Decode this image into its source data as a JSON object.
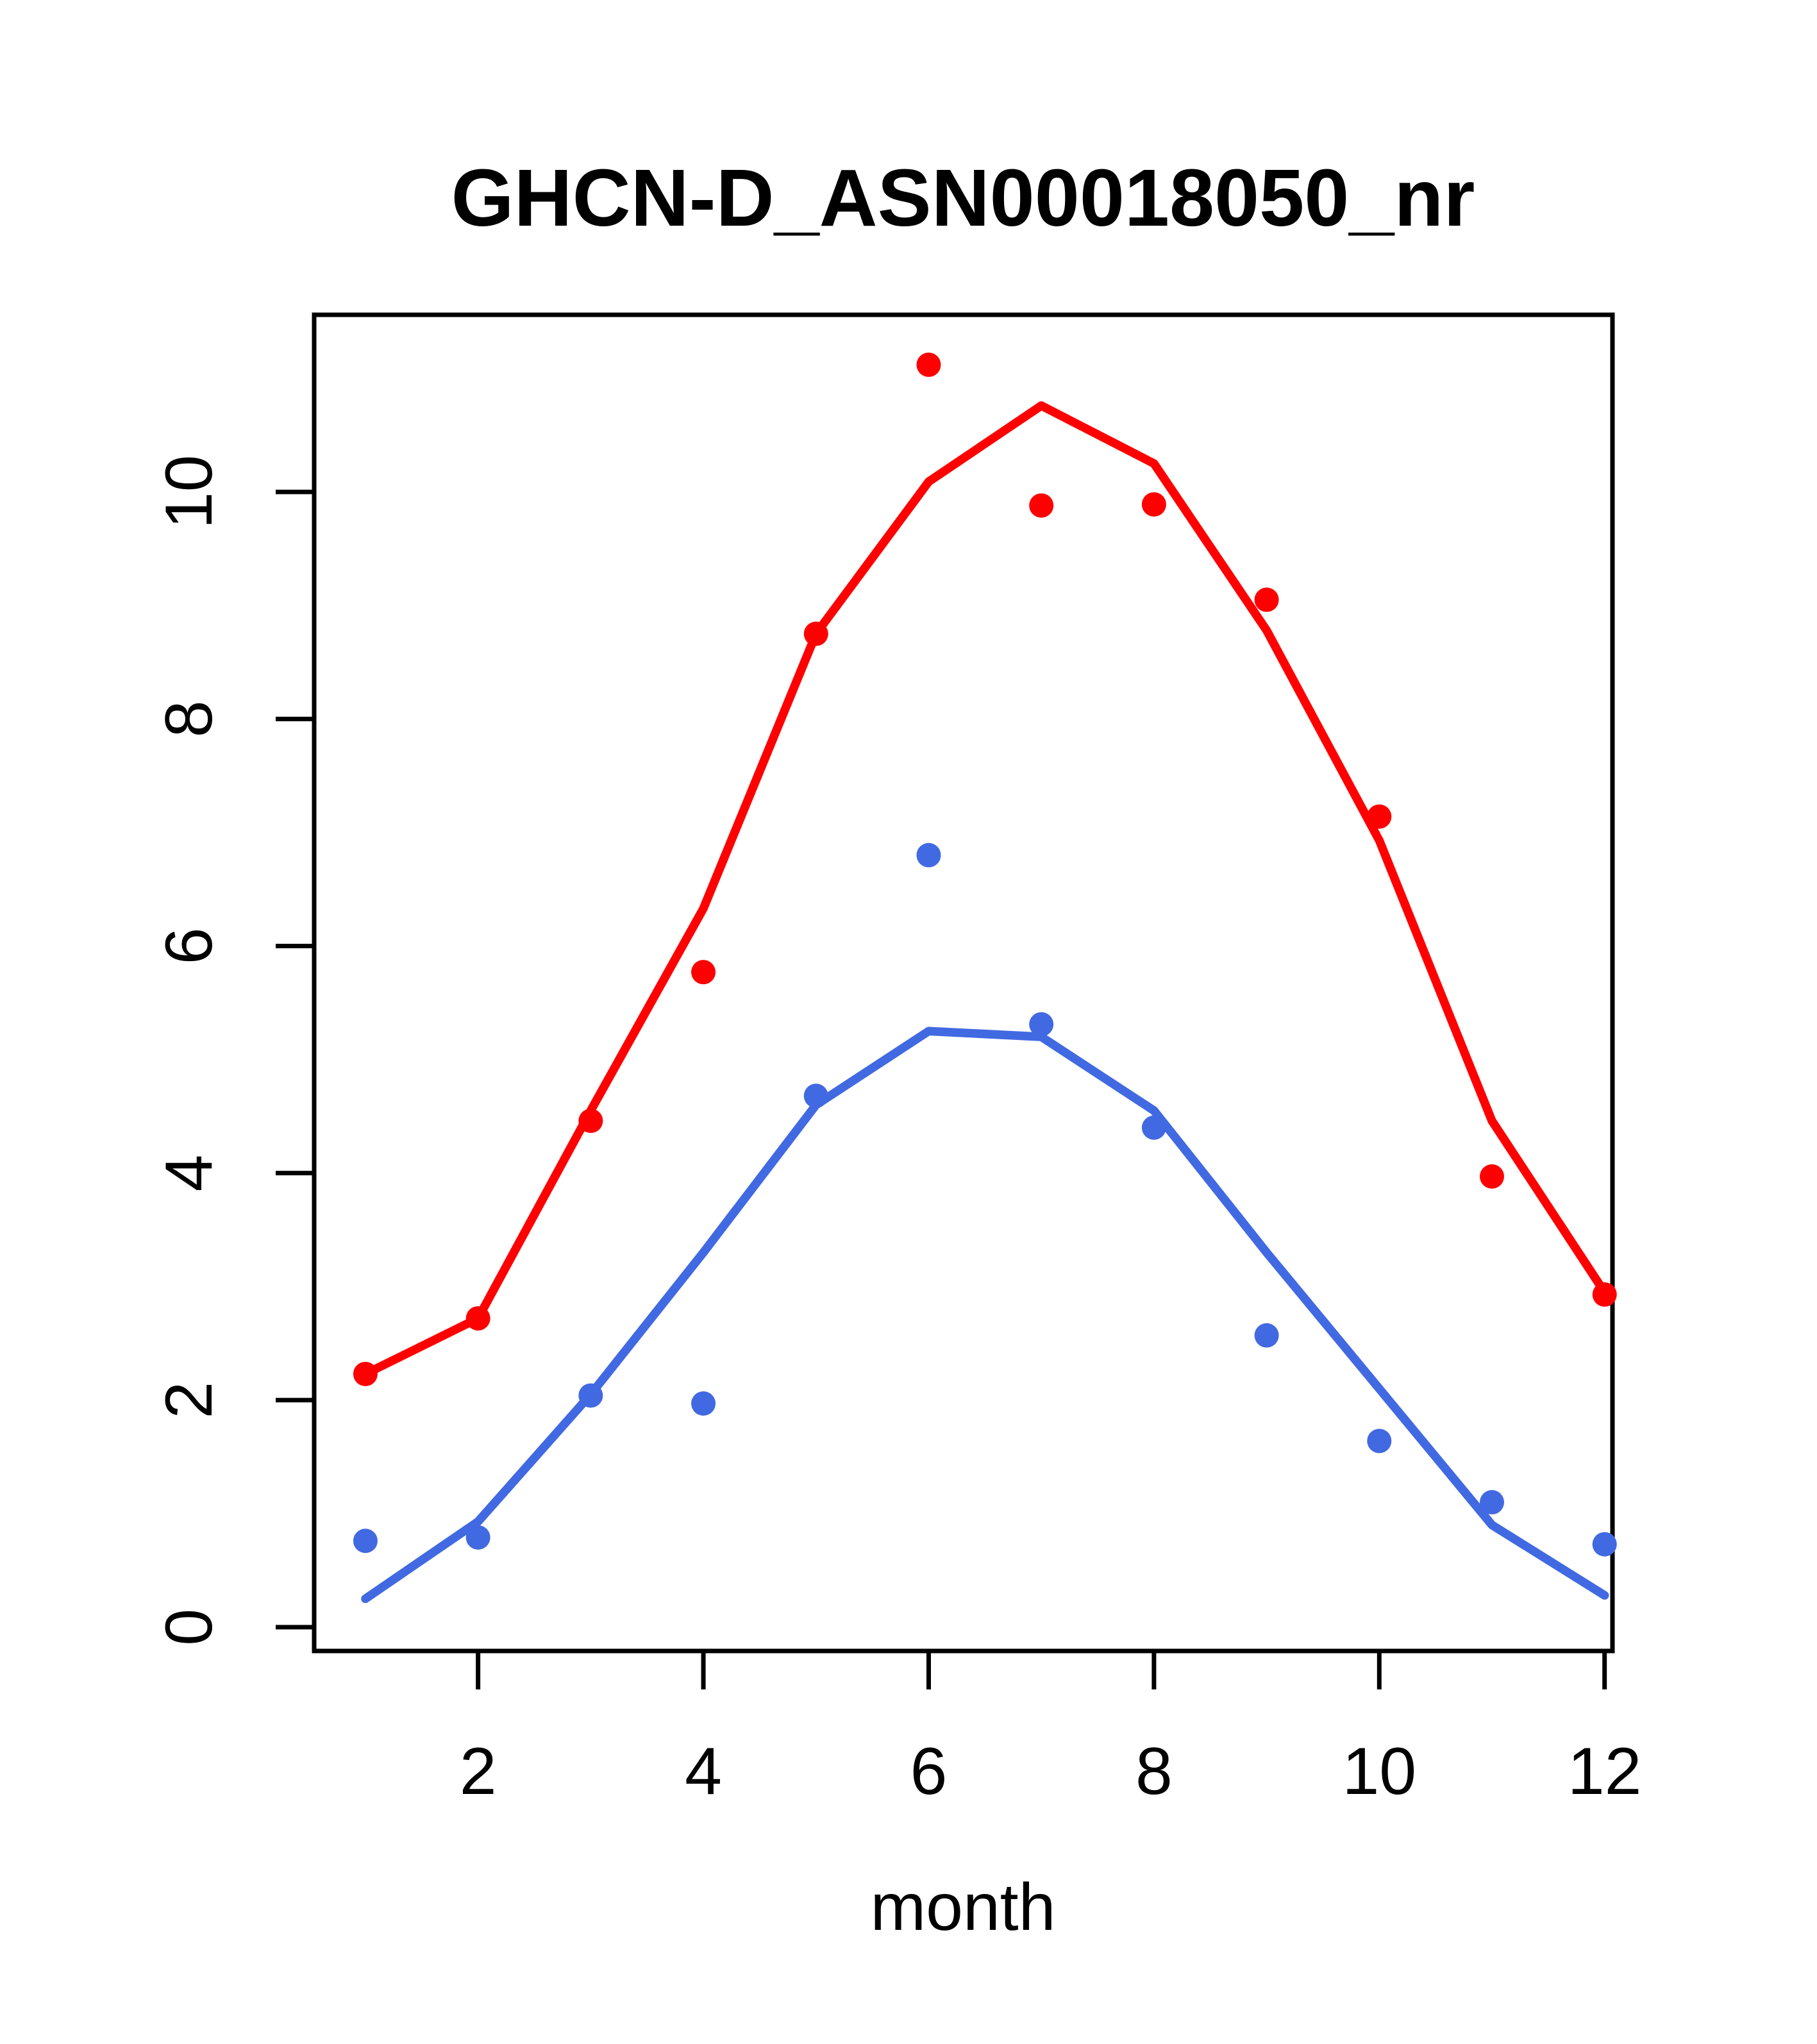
{
  "chart_data": {
    "type": "scatter",
    "title": "GHCN-D_ASN00018050_nr",
    "xlabel": "month",
    "ylabel": "",
    "x": [
      1,
      2,
      3,
      4,
      5,
      6,
      7,
      8,
      9,
      10,
      11,
      12
    ],
    "xticks": [
      2,
      4,
      6,
      8,
      10,
      12
    ],
    "yticks": [
      0,
      2,
      4,
      6,
      8,
      10
    ],
    "xlim": [
      0.545,
      12.07
    ],
    "ylim": [
      -0.21,
      11.56
    ],
    "grid": false,
    "legend_position": "none",
    "colors": {
      "red": "#ff0000",
      "blue": "#4169e1",
      "axis": "#000000"
    },
    "series": [
      {
        "name": "red-smooth-line",
        "type": "line",
        "color": "#ff0000",
        "values": [
          2.23,
          2.72,
          4.55,
          6.33,
          8.75,
          10.09,
          10.76,
          10.25,
          8.78,
          6.93,
          4.46,
          2.95
        ]
      },
      {
        "name": "blue-smooth-line",
        "type": "line",
        "color": "#4169e1",
        "values": [
          0.25,
          0.93,
          2.05,
          3.3,
          4.6,
          5.25,
          5.2,
          4.55,
          3.3,
          2.1,
          0.9,
          0.28
        ]
      },
      {
        "name": "red-points",
        "type": "scatter",
        "color": "#ff0000",
        "values": [
          2.23,
          2.72,
          4.46,
          5.77,
          8.75,
          11.12,
          9.88,
          9.89,
          9.05,
          7.14,
          3.97,
          2.93
        ]
      },
      {
        "name": "blue-points",
        "type": "scatter",
        "color": "#4169e1",
        "values": [
          0.76,
          0.79,
          2.04,
          1.97,
          4.68,
          6.8,
          5.31,
          4.4,
          2.57,
          1.64,
          1.1,
          0.73
        ]
      }
    ]
  }
}
